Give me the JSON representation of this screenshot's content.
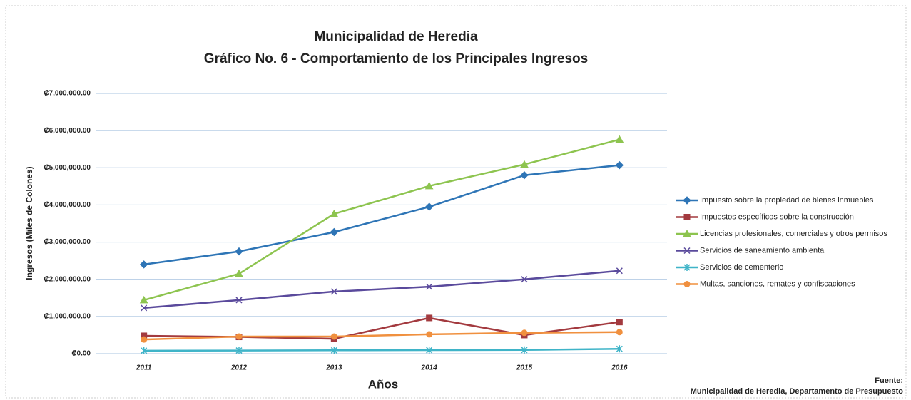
{
  "chart_data": {
    "type": "line",
    "title": "Municipalidad de Heredia",
    "subtitle": "Gráfico No. 6 - Comportamiento de los Principales Ingresos",
    "y_label": "Ingresos (Miles de Colones)",
    "x_label": "Años",
    "source_title": "Fuente:",
    "source": "Municipalidad de Heredia, Departamento de Presupuesto",
    "categories": [
      "2011",
      "2012",
      "2013",
      "2014",
      "2015",
      "2016"
    ],
    "ylim": [
      0,
      7000000
    ],
    "yticks": [
      {
        "value": 0,
        "label": "₡0.00"
      },
      {
        "value": 1000000,
        "label": "₡1,000,000.00"
      },
      {
        "value": 2000000,
        "label": "₡2,000,000.00"
      },
      {
        "value": 3000000,
        "label": "₡3,000,000.00"
      },
      {
        "value": 4000000,
        "label": "₡4,000,000.00"
      },
      {
        "value": 5000000,
        "label": "₡5,000,000.00"
      },
      {
        "value": 6000000,
        "label": "₡6,000,000.00"
      },
      {
        "value": 7000000,
        "label": "₡7,000,000.00"
      }
    ],
    "grid": true,
    "legend": "right",
    "series": [
      {
        "name": "Impuesto sobre la propiedad de bienes inmuebles",
        "color": "#2e75b6",
        "marker": "diamond",
        "values": [
          2400000,
          2750000,
          3270000,
          3950000,
          4800000,
          5070000
        ]
      },
      {
        "name": "Impuestos específicos sobre la construcción",
        "color": "#a33a3f",
        "marker": "square",
        "values": [
          480000,
          450000,
          400000,
          960000,
          500000,
          850000
        ]
      },
      {
        "name": "Licencias profesionales, comerciales y otros permisos",
        "color": "#8dc44f",
        "marker": "triangle",
        "values": [
          1440000,
          2150000,
          3760000,
          4510000,
          5090000,
          5760000
        ]
      },
      {
        "name": "Servicios de saneamiento ambiental",
        "color": "#5a4a9c",
        "marker": "x",
        "values": [
          1230000,
          1440000,
          1670000,
          1800000,
          2000000,
          2230000
        ]
      },
      {
        "name": "Servicios de cementerio",
        "color": "#3fb4c8",
        "marker": "star",
        "values": [
          80000,
          85000,
          90000,
          95000,
          100000,
          130000
        ]
      },
      {
        "name": "Multas, sanciones, remates y confiscaciones",
        "color": "#f0903f",
        "marker": "circle",
        "values": [
          380000,
          460000,
          460000,
          520000,
          560000,
          580000
        ]
      }
    ]
  }
}
